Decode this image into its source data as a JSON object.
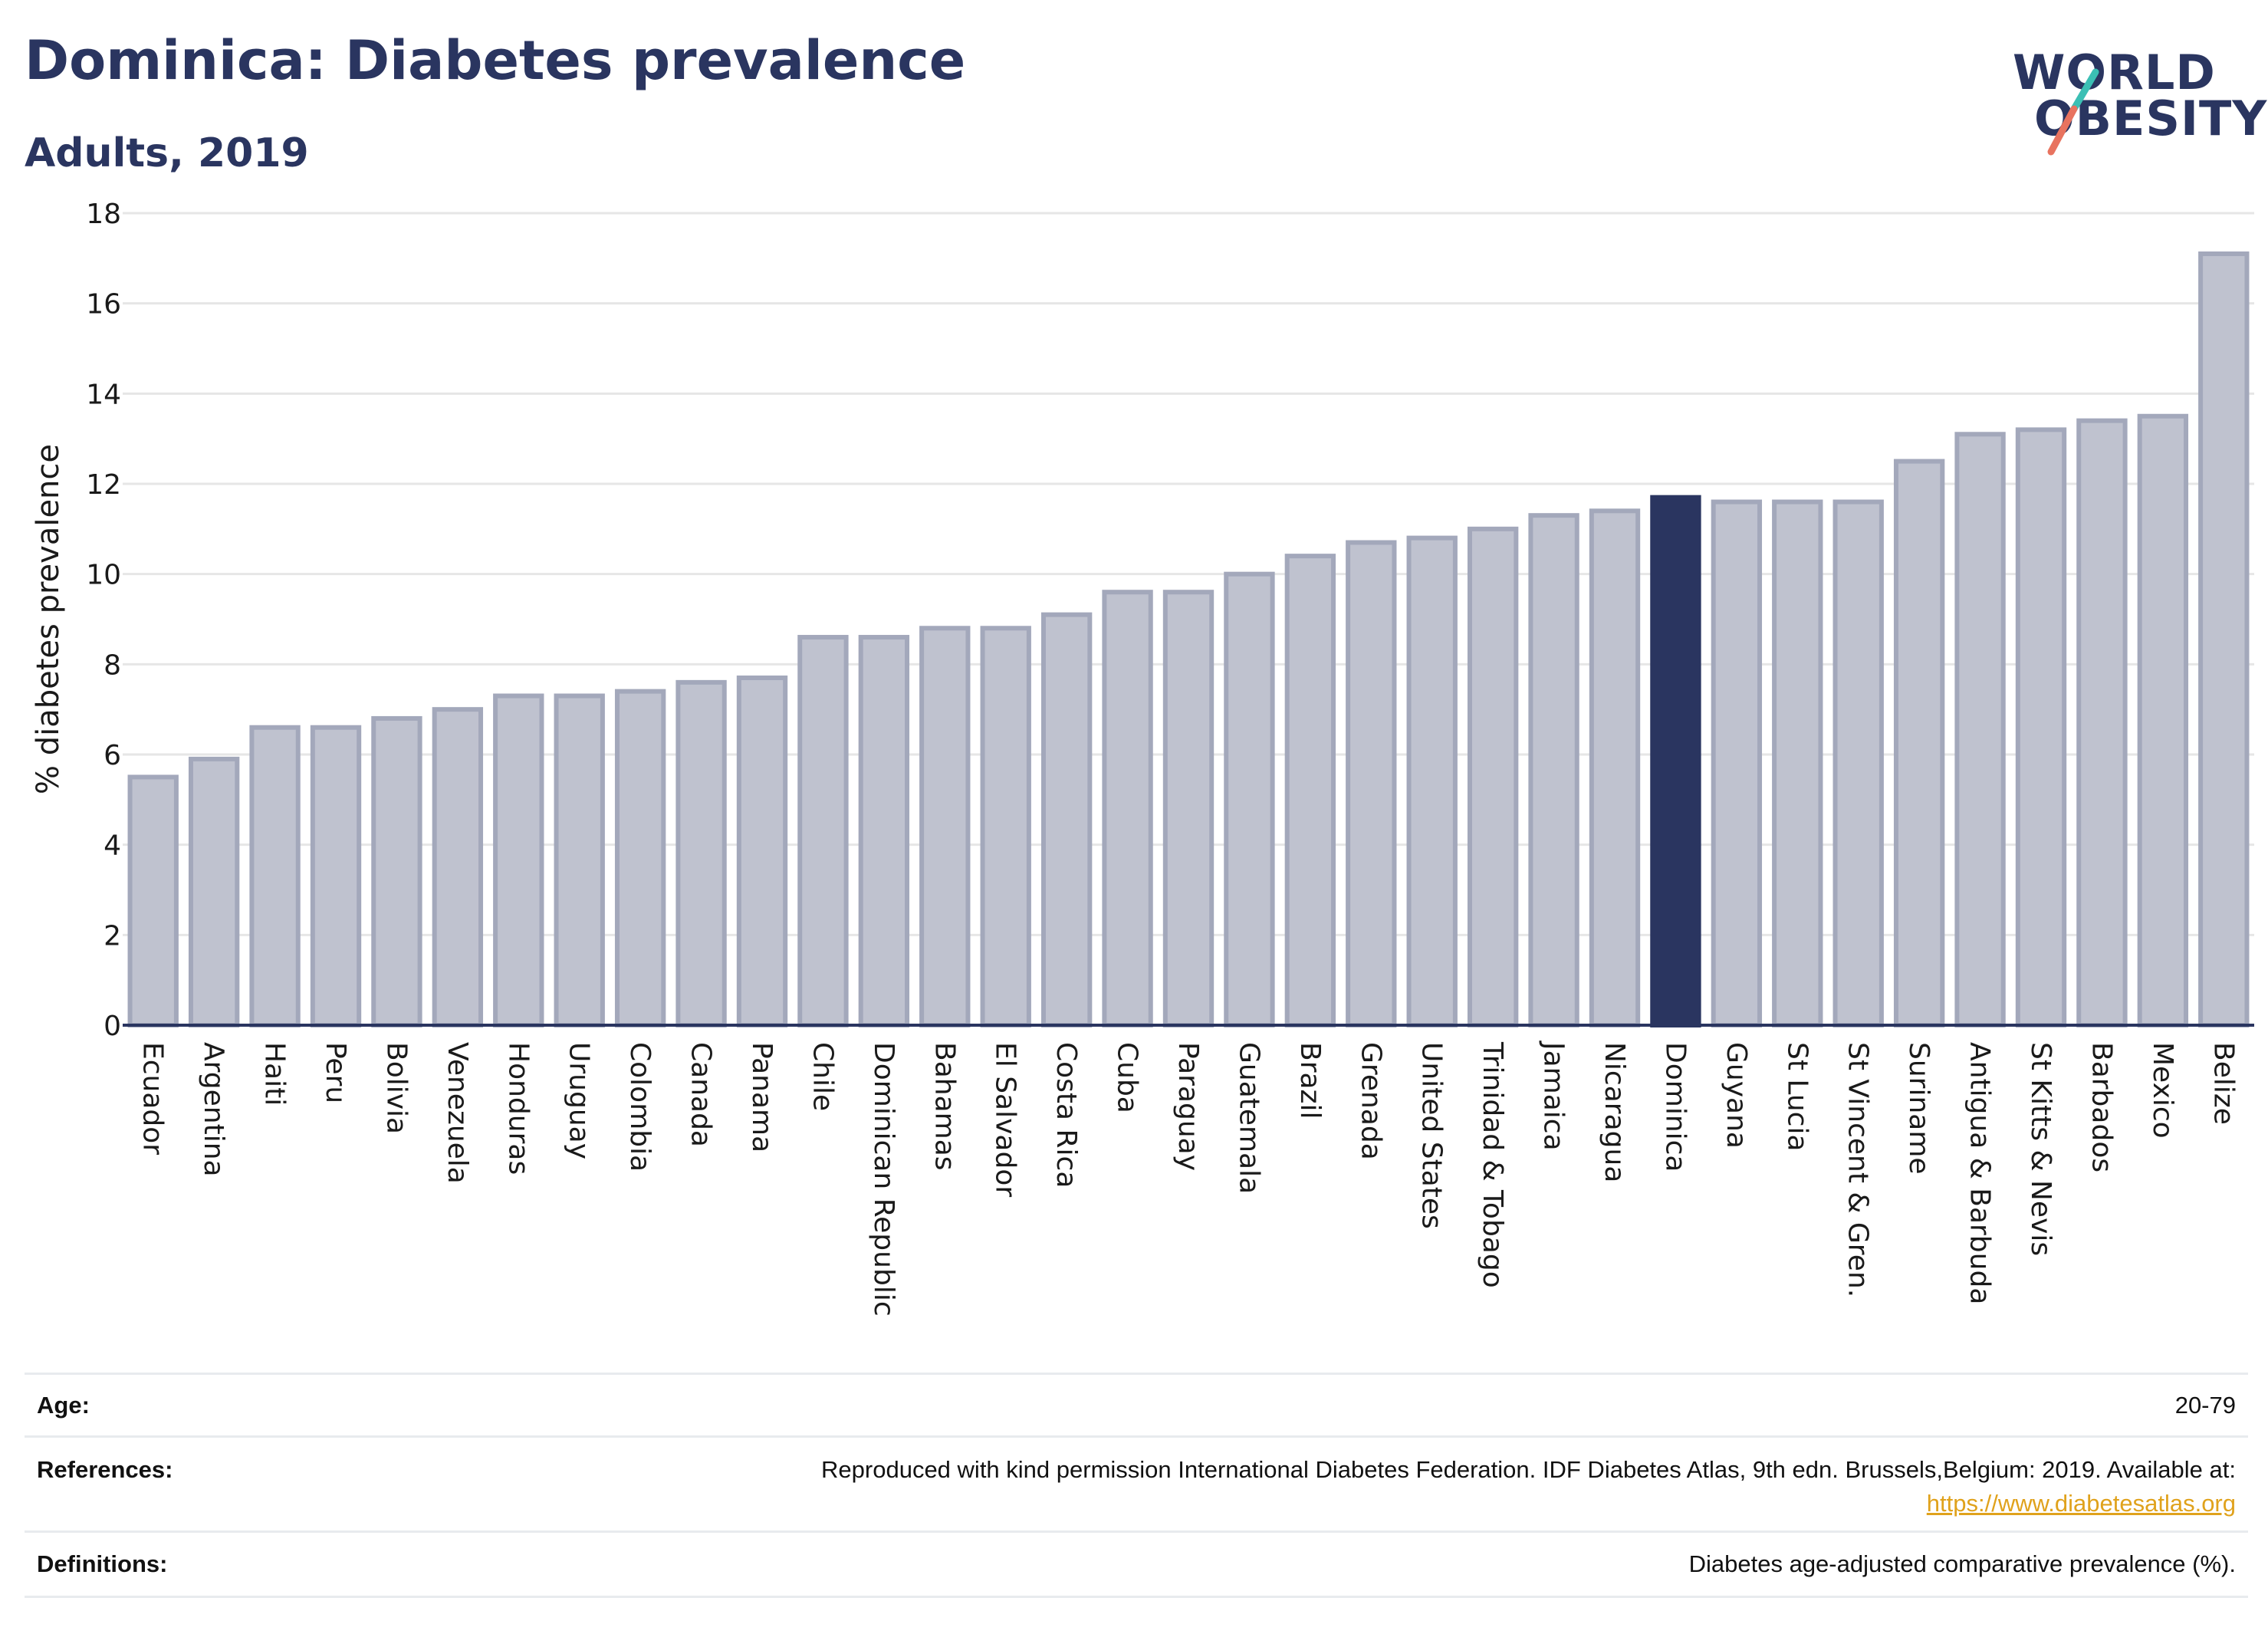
{
  "header": {
    "title": "Dominica: Diabetes prevalence",
    "subtitle": "Adults, 2019"
  },
  "logo": {
    "line1": "WORLD",
    "line2": "OBESITY",
    "accent_teal": "#3bbfb4",
    "accent_coral": "#e8735f"
  },
  "colors": {
    "bar_default": "#bfc2cf",
    "bar_default_stroke": "#a3a8bb",
    "bar_highlight": "#2a3560",
    "title": "#2a3560",
    "gridline": "#e6e6e6",
    "link": "#e0a21c"
  },
  "chart_data": {
    "type": "bar",
    "title": "Dominica: Diabetes prevalence",
    "subtitle": "Adults, 2019",
    "xlabel": "",
    "ylabel": "% diabetes prevalence",
    "ylim": [
      0,
      18
    ],
    "yticks": [
      0,
      2,
      4,
      6,
      8,
      10,
      12,
      14,
      16,
      18
    ],
    "grid": true,
    "highlight": "Dominica",
    "categories": [
      "Ecuador",
      "Argentina",
      "Haiti",
      "Peru",
      "Bolivia",
      "Venezuela",
      "Honduras",
      "Uruguay",
      "Colombia",
      "Canada",
      "Panama",
      "Chile",
      "Dominican Republic",
      "Bahamas",
      "El Salvador",
      "Costa Rica",
      "Cuba",
      "Paraguay",
      "Guatemala",
      "Brazil",
      "Grenada",
      "United States",
      "Trinidad & Tobago",
      "Jamaica",
      "Nicaragua",
      "Dominica",
      "Guyana",
      "St Lucia",
      "St Vincent & Gren.",
      "Suriname",
      "Antigua & Barbuda",
      "St Kitts & Nevis",
      "Barbados",
      "Mexico",
      "Belize"
    ],
    "values": [
      5.5,
      5.9,
      6.6,
      6.6,
      6.8,
      7.0,
      7.3,
      7.3,
      7.4,
      7.6,
      7.7,
      8.6,
      8.6,
      8.8,
      8.8,
      9.1,
      9.6,
      9.6,
      10.0,
      10.4,
      10.7,
      10.8,
      11.0,
      11.3,
      11.4,
      11.7,
      11.6,
      11.6,
      11.6,
      12.5,
      13.1,
      13.2,
      13.4,
      13.5,
      17.1
    ]
  },
  "info": {
    "age_label": "Age:",
    "age_value": "20-79",
    "references_label": "References:",
    "references_text": "Reproduced with kind permission International Diabetes Federation. IDF Diabetes Atlas, 9th edn. Brussels,Belgium: 2019. Available at:",
    "references_link": "https://www.diabetesatlas.org",
    "definitions_label": "Definitions:",
    "definitions_value": "Diabetes age-adjusted comparative prevalence (%)."
  }
}
